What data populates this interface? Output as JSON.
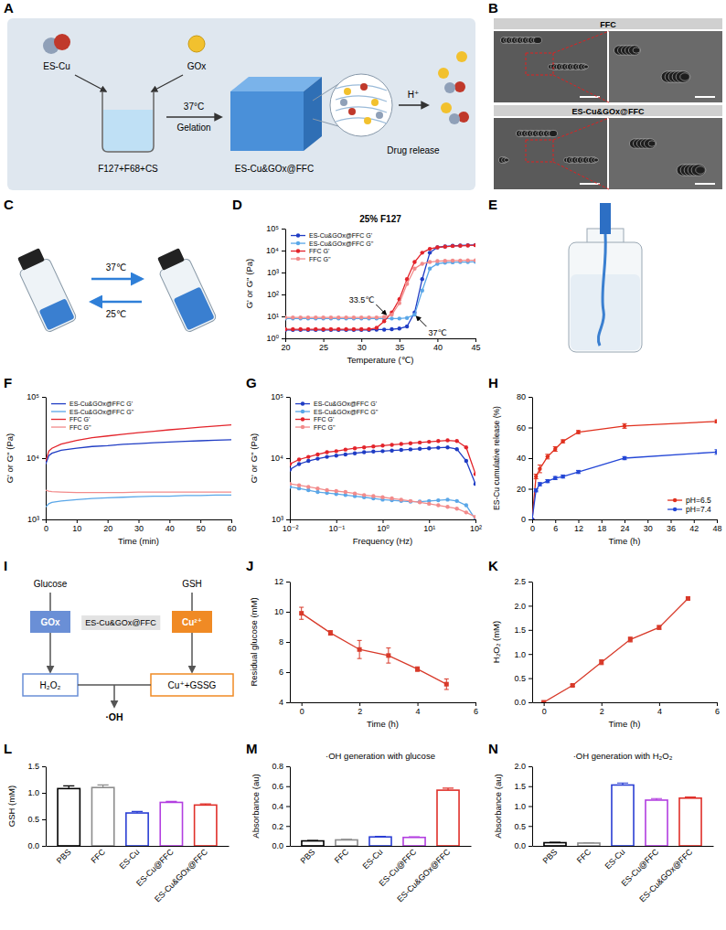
{
  "chart_data": [
    {
      "panel": "D",
      "type": "line",
      "title": "25% F127",
      "x_label": "Temperature (℃)",
      "y_label": "G' or G'' (Pa)",
      "log": "y",
      "legend": "upper left",
      "line_style": "solid",
      "marker": "circle",
      "xlim": [
        20,
        45
      ],
      "xticks": [
        20,
        25,
        30,
        35,
        40,
        45
      ],
      "ylim": [
        1,
        100000
      ],
      "yticks": [
        {
          "value": 1,
          "label": "10⁰"
        },
        {
          "value": 10,
          "label": "10¹"
        },
        {
          "value": 100,
          "label": "10²"
        },
        {
          "value": 1000,
          "label": "10³"
        },
        {
          "value": 10000,
          "label": "10⁴"
        },
        {
          "value": 100000,
          "label": "10⁵"
        }
      ],
      "annotations": [
        {
          "text": "33.5℃",
          "x": 33.5,
          "y": 10
        },
        {
          "text": "37℃",
          "x": 37,
          "y": 12
        }
      ],
      "x": [
        20,
        21,
        22,
        23,
        24,
        25,
        26,
        27,
        28,
        29,
        30,
        31,
        32,
        33,
        34,
        35,
        36,
        37,
        38,
        39,
        40,
        41,
        42,
        43,
        44,
        45
      ],
      "series": [
        {
          "name": "ES-Cu&GOx@FFC G'",
          "color": "#1f3cc4",
          "values": [
            2.4,
            2.4,
            2.4,
            2.4,
            2.4,
            2.4,
            2.4,
            2.4,
            2.4,
            2.4,
            2.4,
            2.4,
            2.5,
            2.5,
            2.6,
            2.8,
            3.5,
            15,
            500,
            8000,
            14000,
            15500,
            16500,
            17000,
            17500,
            18000
          ]
        },
        {
          "name": "ES-Cu&GOx@FFC G''",
          "color": "#5aa7e8",
          "values": [
            8,
            8,
            8,
            8,
            8,
            8,
            8,
            8,
            8,
            8,
            8,
            8,
            8,
            8,
            8,
            8,
            8.5,
            12,
            150,
            1500,
            2500,
            2800,
            2900,
            3000,
            3000,
            3100
          ]
        },
        {
          "name": "FFC G'",
          "color": "#e3242b",
          "values": [
            2.6,
            2.6,
            2.6,
            2.6,
            2.6,
            2.6,
            2.6,
            2.6,
            2.6,
            2.6,
            2.6,
            2.6,
            3,
            6,
            15,
            60,
            500,
            3000,
            8000,
            12000,
            14000,
            15000,
            16000,
            16500,
            17000,
            17500
          ]
        },
        {
          "name": "FFC G''",
          "color": "#f28b8b",
          "values": [
            9,
            9,
            9,
            9,
            9,
            9,
            9,
            9,
            9,
            9,
            9,
            9,
            9,
            9.5,
            12,
            40,
            300,
            1500,
            2500,
            3000,
            3300,
            3400,
            3500,
            3500,
            3600,
            3600
          ]
        }
      ]
    },
    {
      "panel": "F",
      "type": "line",
      "x_label": "Time (min)",
      "y_label": "G' or G'' (Pa)",
      "log": "y",
      "legend": "upper left",
      "line_style": "solid",
      "marker": "none",
      "xlim": [
        0,
        60
      ],
      "xticks": [
        0,
        10,
        20,
        30,
        40,
        50,
        60
      ],
      "ylim": [
        1000,
        100000
      ],
      "yticks": [
        {
          "value": 1000,
          "label": "10³"
        },
        {
          "value": 10000,
          "label": "10⁴"
        },
        {
          "value": 100000,
          "label": "10⁵"
        }
      ],
      "x": [
        0,
        1,
        2,
        5,
        10,
        15,
        20,
        25,
        30,
        35,
        40,
        45,
        50,
        55,
        60
      ],
      "series": [
        {
          "name": "ES-Cu&GOx@FFC G'",
          "color": "#1f3cc4",
          "values": [
            8000,
            11000,
            12000,
            13500,
            14500,
            15500,
            16000,
            16800,
            17300,
            17800,
            18300,
            18800,
            19200,
            19600,
            20000
          ]
        },
        {
          "name": "ES-Cu&GOx@FFC G''",
          "color": "#5aa7e8",
          "values": [
            1600,
            1800,
            1900,
            2000,
            2100,
            2200,
            2250,
            2300,
            2350,
            2400,
            2400,
            2450,
            2450,
            2500,
            2500
          ]
        },
        {
          "name": "FFC G'",
          "color": "#e3242b",
          "values": [
            9000,
            13000,
            14500,
            17000,
            19500,
            21500,
            23000,
            24500,
            26000,
            27500,
            29000,
            30500,
            32000,
            33500,
            35000
          ]
        },
        {
          "name": "FFC G''",
          "color": "#f28b8b",
          "values": [
            3000,
            2900,
            2850,
            2800,
            2750,
            2750,
            2750,
            2750,
            2800,
            2800,
            2800,
            2800,
            2800,
            2800,
            2800
          ]
        }
      ]
    },
    {
      "panel": "G",
      "type": "line",
      "x_label": "Frequency (Hz)",
      "y_label": "G' or G'' (Pa)",
      "log": true,
      "legend": "upper left",
      "line_style": "solid",
      "marker": "circle",
      "xlim": [
        0.01,
        100
      ],
      "xticks": [
        {
          "value": 0.01,
          "label": "10⁻²"
        },
        {
          "value": 0.1,
          "label": "10⁻¹"
        },
        {
          "value": 1,
          "label": "10⁰"
        },
        {
          "value": 10,
          "label": "10¹"
        },
        {
          "value": 100,
          "label": "10²"
        }
      ],
      "ylim": [
        1000,
        100000
      ],
      "yticks": [
        {
          "value": 1000,
          "label": "10³"
        },
        {
          "value": 10000,
          "label": "10⁴"
        },
        {
          "value": 100000,
          "label": "10⁵"
        }
      ],
      "x": [
        0.01,
        0.0158,
        0.0251,
        0.0398,
        0.0631,
        0.1,
        0.158,
        0.251,
        0.398,
        0.631,
        1,
        1.58,
        2.51,
        3.98,
        6.31,
        10,
        15.8,
        25.1,
        39.8,
        63.1,
        100
      ],
      "series": [
        {
          "name": "ES-Cu&GOx@FFC G'",
          "color": "#1f3cc4",
          "values": [
            6500,
            8000,
            9000,
            9800,
            10500,
            11000,
            11500,
            12000,
            12500,
            12800,
            13000,
            13300,
            13600,
            13900,
            14200,
            14500,
            14800,
            15000,
            14000,
            9000,
            3800
          ]
        },
        {
          "name": "ES-Cu&GOx@FFC G''",
          "color": "#5aa7e8",
          "values": [
            3400,
            3200,
            3000,
            2800,
            2700,
            2600,
            2500,
            2400,
            2300,
            2200,
            2100,
            2050,
            2000,
            1950,
            1950,
            2000,
            2050,
            2100,
            2000,
            1700,
            1000
          ]
        },
        {
          "name": "FFC G'",
          "color": "#e3242b",
          "values": [
            8000,
            9500,
            10500,
            11500,
            12500,
            13000,
            13800,
            14500,
            15000,
            15500,
            16000,
            16500,
            17000,
            17500,
            18000,
            18500,
            19000,
            19500,
            19000,
            15000,
            5500
          ]
        },
        {
          "name": "FFC G''",
          "color": "#f28b8b",
          "values": [
            3800,
            3600,
            3400,
            3200,
            3000,
            2900,
            2800,
            2650,
            2500,
            2400,
            2300,
            2200,
            2100,
            2000,
            1900,
            1800,
            1700,
            1600,
            1500,
            1300,
            1100
          ]
        }
      ]
    },
    {
      "panel": "H",
      "type": "line",
      "x_label": "Time (h)",
      "y_label": "ES-Cu cumulative release (%)",
      "legend": "lower right",
      "line_style": "solid",
      "marker": "circle",
      "xlim": [
        0,
        48
      ],
      "xticks": [
        0,
        6,
        12,
        18,
        24,
        30,
        36,
        42,
        48
      ],
      "ylim": [
        0,
        80
      ],
      "yticks": [
        0,
        20,
        40,
        60,
        80
      ],
      "x": [
        0,
        1,
        2,
        4,
        6,
        8,
        12,
        24,
        48
      ],
      "series": [
        {
          "name": "pH=6.5",
          "color": "#e0301e",
          "values": [
            0,
            28,
            33,
            41,
            46,
            51,
            57,
            61,
            64
          ],
          "errors": [
            0,
            1.5,
            2.5,
            1.5,
            1.5,
            1,
            1,
            1.5,
            1
          ]
        },
        {
          "name": "pH=7.4",
          "color": "#2346d6",
          "values": [
            0,
            19,
            23,
            25,
            27,
            28,
            31,
            40,
            44
          ],
          "errors": [
            0,
            1,
            1,
            1,
            1,
            1,
            1,
            1,
            1.5
          ]
        }
      ]
    },
    {
      "panel": "J",
      "type": "line",
      "x_label": "Time (h)",
      "y_label": "Residual glucose (mM)",
      "line_style": "solid",
      "marker": "square",
      "xlim": [
        -0.4,
        6
      ],
      "xticks": [
        0,
        2,
        4,
        6
      ],
      "ylim": [
        4,
        12
      ],
      "yticks": [
        4,
        6,
        8,
        10,
        12
      ],
      "x": [
        0,
        1,
        2,
        3,
        4,
        5
      ],
      "series": [
        {
          "color": "#d83a2a",
          "values": [
            9.9,
            8.6,
            7.5,
            7.1,
            6.2,
            5.2
          ],
          "errors": [
            0.4,
            0.15,
            0.6,
            0.5,
            0.15,
            0.35
          ]
        }
      ]
    },
    {
      "panel": "K",
      "type": "line",
      "x_label": "Time (h)",
      "y_label": "H₂O₂ (mM)",
      "line_style": "solid",
      "marker": "square",
      "xlim": [
        -0.4,
        6
      ],
      "xticks": [
        0,
        2,
        4,
        6
      ],
      "ylim": [
        0,
        2.5
      ],
      "yticks": [
        {
          "value": 0,
          "label": "0.0"
        },
        0.5,
        {
          "value": 1,
          "label": "1.0"
        },
        1.5,
        {
          "value": 2,
          "label": "2.0"
        },
        2.5
      ],
      "x": [
        0,
        1,
        2,
        3,
        4,
        5
      ],
      "series": [
        {
          "color": "#d83a2a",
          "values": [
            0,
            0.35,
            0.83,
            1.3,
            1.55,
            2.15
          ],
          "errors": [
            0.01,
            0.02,
            0.05,
            0.05,
            0.04,
            0.03
          ]
        }
      ]
    },
    {
      "panel": "L",
      "type": "bar",
      "y_label": "GSH (mM)",
      "categories": [
        "PBS",
        "FFC",
        "ES-Cu",
        "ES-Cu@FFC",
        "ES-Cu&GOx@FFC"
      ],
      "values": [
        1.08,
        1.1,
        0.62,
        0.82,
        0.77
      ],
      "errors": [
        0.05,
        0.05,
        0.03,
        0.02,
        0.02
      ],
      "colors": [
        "#000000",
        "#8c8c8c",
        "#2b3fd4",
        "#b23fe0",
        "#e0302a"
      ],
      "ylim": [
        0,
        1.5
      ],
      "yticks": [
        {
          "value": 0,
          "label": "0.0"
        },
        0.5,
        {
          "value": 1,
          "label": "1.0"
        },
        1.5
      ]
    },
    {
      "panel": "M",
      "type": "bar",
      "title": "·OH generation with glucose",
      "y_label": "Absorbance (au)",
      "categories": [
        "PBS",
        "FFC",
        "ES-Cu",
        "ES-Cu@FFC",
        "ES-Cu&GOx@FFC"
      ],
      "values": [
        0.05,
        0.06,
        0.09,
        0.085,
        0.56
      ],
      "errors": [
        0.005,
        0.005,
        0.005,
        0.005,
        0.02
      ],
      "colors": [
        "#000000",
        "#8c8c8c",
        "#2b3fd4",
        "#b23fe0",
        "#e0302a"
      ],
      "ylim": [
        0,
        0.8
      ],
      "yticks": [
        {
          "value": 0,
          "label": "0.0"
        },
        0.2,
        0.4,
        0.6,
        0.8
      ]
    },
    {
      "panel": "N",
      "type": "bar",
      "title": "·OH generation with H₂O₂",
      "y_label": "Absorbance (au)",
      "categories": [
        "PBS",
        "FFC",
        "ES-Cu",
        "ES-Cu@FFC",
        "ES-Cu&GOx@FFC"
      ],
      "values": [
        0.08,
        0.07,
        1.53,
        1.15,
        1.2
      ],
      "errors": [
        0.01,
        0.01,
        0.05,
        0.04,
        0.03
      ],
      "colors": [
        "#000000",
        "#8c8c8c",
        "#2b3fd4",
        "#b23fe0",
        "#e0302a"
      ],
      "ylim": [
        0,
        2
      ],
      "yticks": [
        {
          "value": 0,
          "label": "0.0"
        },
        0.5,
        {
          "value": 1,
          "label": "1.0"
        },
        1.5,
        {
          "value": 2,
          "label": "2.0"
        }
      ]
    }
  ],
  "figure": {
    "A": {
      "panel": "A",
      "reagents": [
        "ES-Cu",
        "GOx"
      ],
      "step": "37°C",
      "process": "Gelation",
      "solution": "F127+F68+CS",
      "product": "ES-Cu&GOx@FFC",
      "trigger": "H⁺",
      "outcome": "Drug release"
    },
    "B": {
      "panel": "B",
      "images": [
        "FFC",
        "ES-Cu&GOx@FFC"
      ]
    },
    "C": {
      "panel": "C",
      "forward": "37℃",
      "backward": "25℃"
    },
    "E": {
      "panel": "E"
    },
    "I": {
      "panel": "I",
      "inputs": [
        "Glucose",
        "GSH"
      ],
      "catalysts": [
        "GOx",
        "Cu²⁺"
      ],
      "system": "ES-Cu&GOx@FFC",
      "products": [
        "H₂O₂",
        "Cu⁺+GSSG"
      ],
      "radical": "·OH"
    }
  }
}
